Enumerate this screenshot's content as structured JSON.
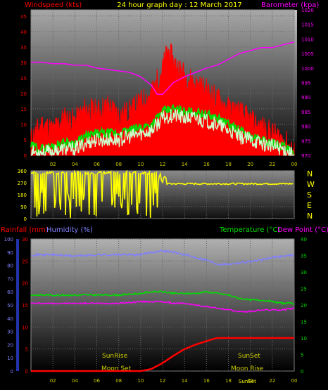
{
  "header": {
    "title": "24 hour graph day : 12 March 2017",
    "left_label": "Windspeed (kts)",
    "right_label": "Barometer (kpa)"
  },
  "direction_labels": [
    "N",
    "W",
    "S",
    "E",
    "N"
  ],
  "bottom_header": {
    "rain_label": "Rainfall (mm)",
    "humidity_label": "Humidity (%)",
    "temp_label": "Temperature (°C)",
    "dew_label": "Dew Point (°C)"
  },
  "annotations": {
    "sunrise": "SunRise",
    "sunset": "SunSet",
    "moonset": "Moon Set",
    "moonrise": "Moon Rise",
    "sunset_small": "SunSet"
  },
  "colors": {
    "wind": "#ff0000",
    "gust": "#00dd00",
    "avg": "#ccffcc",
    "baro": "#ff00ff",
    "dir": "#ffff00",
    "rain": "#ff0000",
    "humidity": "#8080ff",
    "temp": "#00dd00",
    "dew": "#ff00ff",
    "label_red": "#ff0000",
    "label_yellow": "#ffff00",
    "label_magenta": "#ff00ff",
    "label_blue": "#8080ff",
    "label_green": "#00dd00"
  },
  "chart_data": [
    {
      "type": "line",
      "title": "24 hour graph day : 12 March 2017",
      "xlabel": "",
      "ylabel": "Windspeed (kts)",
      "y2label": "Barometer (kpa)",
      "x_ticks": [
        "02",
        "04",
        "06",
        "08",
        "10",
        "12",
        "14",
        "16",
        "18",
        "20",
        "22",
        "00"
      ],
      "y_ticks": [
        "0",
        "5",
        "10",
        "15",
        "20",
        "25",
        "30",
        "35",
        "40",
        "45"
      ],
      "y2_ticks": [
        "970",
        "975",
        "980",
        "985",
        "990",
        "995",
        "1000",
        "1005",
        "1010",
        "1015",
        "1020"
      ],
      "ylim": [
        0,
        47
      ],
      "y2lim": [
        970,
        1020
      ],
      "x_range_hours": [
        0,
        24
      ],
      "series": [
        {
          "name": "Windspeed",
          "axis": "left",
          "x": [
            0,
            1,
            2,
            3,
            4,
            5,
            6,
            7,
            8,
            9,
            10,
            11,
            12,
            12.5,
            13,
            14,
            15,
            16,
            17,
            18,
            19,
            20,
            21,
            22,
            23,
            24
          ],
          "y": [
            5,
            10,
            8,
            12,
            11,
            15,
            14,
            16,
            13,
            14,
            17,
            20,
            28,
            34,
            30,
            26,
            23,
            21,
            18,
            15,
            14,
            11,
            9,
            7,
            5,
            1
          ]
        },
        {
          "name": "Gust",
          "axis": "left",
          "x": [
            0,
            1,
            2,
            3,
            4,
            5,
            6,
            7,
            8,
            9,
            10,
            11,
            12,
            13,
            14,
            15,
            16,
            17,
            18,
            19,
            20,
            21,
            22,
            23,
            24
          ],
          "y": [
            3,
            2,
            3,
            4,
            4,
            6,
            7,
            7,
            7,
            8,
            9,
            10,
            14,
            15,
            14,
            14,
            13,
            12,
            10,
            8,
            6,
            5,
            4,
            3,
            0
          ]
        },
        {
          "name": "Average",
          "axis": "left",
          "x": [
            0,
            1,
            2,
            3,
            4,
            5,
            6,
            7,
            8,
            9,
            10,
            11,
            12,
            13,
            14,
            15,
            16,
            17,
            18,
            19,
            20,
            21,
            22,
            23,
            24
          ],
          "y": [
            1,
            1,
            1,
            2,
            2,
            4,
            5,
            5,
            5,
            6,
            7,
            8,
            12,
            13,
            12,
            12,
            11,
            10,
            8,
            6,
            5,
            4,
            3,
            2,
            0
          ]
        },
        {
          "name": "Barometer",
          "axis": "right",
          "x": [
            0,
            1,
            2,
            3,
            4,
            5,
            6,
            7,
            8,
            9,
            10,
            11,
            11.5,
            12,
            13,
            14,
            15,
            16,
            17,
            18,
            19,
            20,
            21,
            22,
            23,
            24
          ],
          "y": [
            1002,
            1002,
            1001.5,
            1001.5,
            1001,
            1001,
            1000,
            999.5,
            999,
            998.5,
            997,
            994,
            991,
            991,
            995,
            997,
            998.5,
            1000,
            1001,
            1003,
            1005,
            1006,
            1007,
            1007,
            1008,
            1009
          ]
        }
      ]
    },
    {
      "type": "line",
      "title": "",
      "ylabel": "",
      "y_ticks": [
        "0",
        "90",
        "180",
        "270",
        "360"
      ],
      "ylim": [
        0,
        360
      ],
      "x_range_hours": [
        0,
        24
      ],
      "series": [
        {
          "name": "Wind Direction",
          "x": [
            0,
            1,
            2,
            3,
            4,
            5,
            6,
            7,
            8,
            9,
            10,
            10.5,
            11,
            11.5,
            12,
            13,
            14,
            15,
            16,
            17,
            18,
            19,
            20,
            21,
            22,
            23,
            24
          ],
          "y": [
            340,
            30,
            340,
            200,
            340,
            90,
            340,
            30,
            340,
            10,
            340,
            30,
            20,
            20,
            320,
            270,
            270,
            265,
            265,
            262,
            260,
            262,
            263,
            265,
            265,
            265,
            262
          ]
        }
      ]
    },
    {
      "type": "line",
      "title": "",
      "ylabel": "Rainfall (mm) / Humidity (%)",
      "y2label": "Temperature (°C) / Dew Point (°C)",
      "x_ticks": [
        "02",
        "04",
        "06",
        "08",
        "10",
        "12",
        "14",
        "16",
        "18",
        "20",
        "22",
        "00"
      ],
      "y_ticks": [
        "0",
        "5",
        "10",
        "15",
        "20",
        "25",
        "30"
      ],
      "y_left2_ticks": [
        "0",
        "10",
        "20",
        "30",
        "40",
        "50",
        "60",
        "70",
        "80",
        "90",
        "100"
      ],
      "y2_ticks": [
        "0",
        "5",
        "10",
        "15",
        "20",
        "25",
        "30",
        "35",
        "40"
      ],
      "ylim": [
        0,
        30
      ],
      "y2lim": [
        0,
        40
      ],
      "x_range_hours": [
        0,
        24
      ],
      "series": [
        {
          "name": "Humidity",
          "axis": "humidity",
          "x": [
            0,
            2,
            4,
            6,
            8,
            10,
            11,
            12,
            13,
            14,
            15,
            16,
            17,
            18,
            19,
            20,
            21,
            22,
            23,
            24
          ],
          "y": [
            88,
            88,
            87,
            88,
            88,
            88,
            90,
            91,
            90,
            88,
            86,
            84,
            81,
            81,
            82,
            83,
            84,
            86,
            87,
            88
          ]
        },
        {
          "name": "Temperature",
          "axis": "right",
          "x": [
            0,
            2,
            4,
            6,
            8,
            10,
            11,
            12,
            13,
            14,
            15,
            16,
            17,
            18,
            19,
            20,
            21,
            22,
            23,
            24
          ],
          "y": [
            23,
            23,
            23,
            23,
            23,
            23.5,
            24,
            24,
            23.5,
            23.5,
            23.5,
            24,
            23.5,
            23,
            22,
            21.5,
            21.5,
            21,
            20.5,
            20.5
          ]
        },
        {
          "name": "Dew Point",
          "axis": "right",
          "x": [
            0,
            2,
            4,
            6,
            8,
            10,
            11,
            12,
            13,
            14,
            15,
            16,
            17,
            18,
            19,
            20,
            21,
            22,
            23,
            24
          ],
          "y": [
            20.5,
            20.5,
            20.5,
            20.5,
            20.5,
            21,
            21,
            21,
            20.5,
            20.5,
            20,
            19.5,
            19,
            18.5,
            18,
            18,
            18.5,
            18.5,
            18.5,
            19
          ]
        },
        {
          "name": "Rainfall",
          "axis": "left",
          "x": [
            0,
            2,
            4,
            6,
            8,
            9,
            10,
            10.5,
            11,
            12,
            13,
            14,
            15,
            16,
            16.5,
            17,
            18,
            20,
            22,
            23,
            24
          ],
          "y": [
            0,
            0,
            0,
            0,
            0,
            0,
            0,
            0.2,
            0.5,
            1.8,
            3.5,
            5,
            6,
            6.8,
            7.2,
            7.5,
            7.5,
            7.5,
            7.5,
            7.5,
            7.5
          ]
        }
      ]
    }
  ]
}
